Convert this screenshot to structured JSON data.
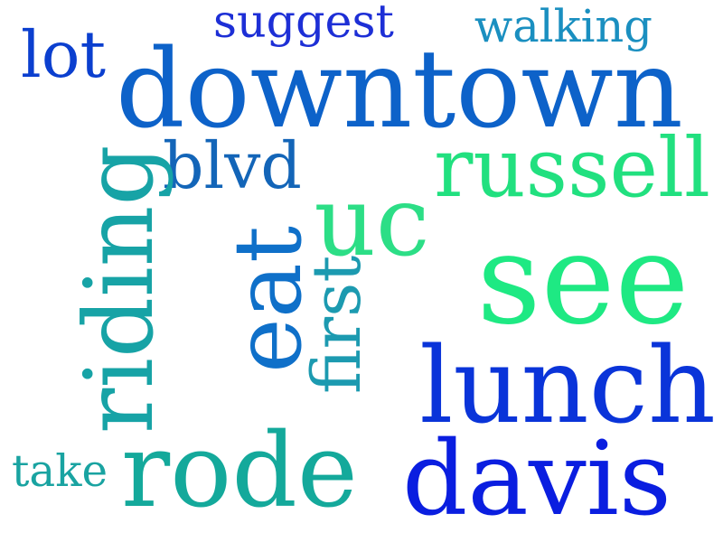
{
  "words": [
    {
      "key": "suggest",
      "text": "suggest",
      "color": "#1d2fd6"
    },
    {
      "key": "walking",
      "text": "walking",
      "color": "#1a8fc0"
    },
    {
      "key": "lot",
      "text": "lot",
      "color": "#0b3fcf"
    },
    {
      "key": "downtown",
      "text": "downtown",
      "color": "#0d62c9"
    },
    {
      "key": "blvd",
      "text": "blvd",
      "color": "#1365b8"
    },
    {
      "key": "russell",
      "text": "russell",
      "color": "#21e07f"
    },
    {
      "key": "riding",
      "text": "riding",
      "color": "#17a3a6"
    },
    {
      "key": "uc",
      "text": "uc",
      "color": "#2cde86"
    },
    {
      "key": "see",
      "text": "see",
      "color": "#1ee983"
    },
    {
      "key": "eat",
      "text": "eat",
      "color": "#0f70c9"
    },
    {
      "key": "first",
      "text": "first",
      "color": "#1c9ab0"
    },
    {
      "key": "lunch",
      "text": "lunch",
      "color": "#0a34d9"
    },
    {
      "key": "take",
      "text": "take",
      "color": "#19a3a1"
    },
    {
      "key": "rode",
      "text": "rode",
      "color": "#14a99b"
    },
    {
      "key": "davis",
      "text": "davis",
      "color": "#0a1ee0"
    }
  ]
}
